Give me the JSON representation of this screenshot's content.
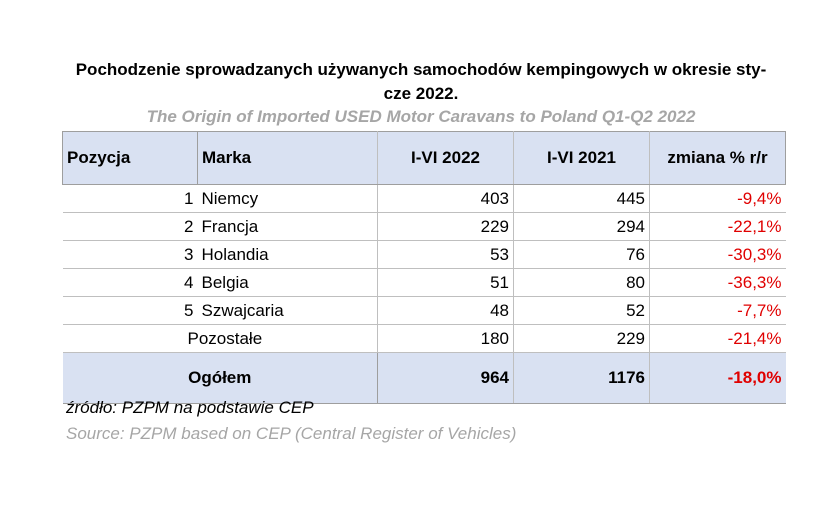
{
  "title_line1": "Pochodzenie sprowadzanych używanych samochodów kempingowych w okresie sty-",
  "title_line2": "cze 2022.",
  "subtitle": "The Origin of Imported USED Motor Caravans to Poland Q1-Q2 2022",
  "source_pl": "źródło: PZPM na podstawie CEP",
  "source_en": "Source: PZPM based on CEP (Central Register of Vehicles)",
  "colors": {
    "header_bg": "#d9e1f2",
    "negative": "#e00000",
    "muted": "#a6a6a6"
  },
  "chart_data": {
    "type": "table",
    "columns": [
      "Pozycja",
      "Marka",
      "I-VI 2022",
      "I-VI 2021",
      "zmiana % r/r"
    ],
    "rows": [
      {
        "pos": "1",
        "marka": "Niemcy",
        "v2022": "403",
        "v2021": "445",
        "change": "-9,4%"
      },
      {
        "pos": "2",
        "marka": "Francja",
        "v2022": "229",
        "v2021": "294",
        "change": "-22,1%"
      },
      {
        "pos": "3",
        "marka": "Holandia",
        "v2022": "53",
        "v2021": "76",
        "change": "-30,3%"
      },
      {
        "pos": "4",
        "marka": "Belgia",
        "v2022": "51",
        "v2021": "80",
        "change": "-36,3%"
      },
      {
        "pos": "5",
        "marka": "Szwajcaria",
        "v2022": "48",
        "v2021": "52",
        "change": "-7,7%"
      }
    ],
    "other": {
      "label": "Pozostałe",
      "v2022": "180",
      "v2021": "229",
      "change": "-21,4%"
    },
    "total": {
      "label": "Ogółem",
      "v2022": "964",
      "v2021": "1176",
      "change": "-18,0%"
    }
  }
}
